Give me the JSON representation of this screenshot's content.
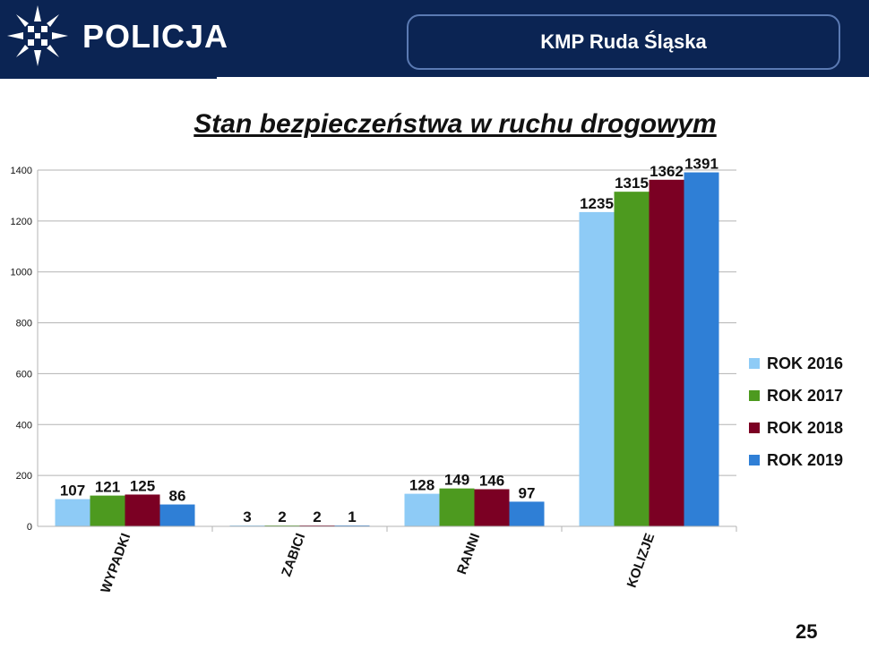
{
  "header": {
    "brand": "POLICJA",
    "unit": "KMP Ruda Śląska"
  },
  "colors": {
    "header_bg": "#0b2453",
    "grid": "#b3b3b3"
  },
  "icons": {
    "logo": "police-star-icon"
  },
  "page_number": "25",
  "chart_data": {
    "type": "bar",
    "title": "Stan bezpieczeństwa w ruchu drogowym",
    "categories": [
      "WYPADKI",
      "ZABICI",
      "RANNI",
      "KOLIZJE"
    ],
    "series": [
      {
        "name": "ROK 2016",
        "color": "#8ecbf6",
        "values": [
          107,
          3,
          128,
          1235
        ]
      },
      {
        "name": "ROK 2017",
        "color": "#4d9a1f",
        "values": [
          121,
          2,
          149,
          1315
        ]
      },
      {
        "name": "ROK 2018",
        "color": "#7b0023",
        "values": [
          125,
          2,
          146,
          1362
        ]
      },
      {
        "name": "ROK 2019",
        "color": "#2f7fd6",
        "values": [
          86,
          1,
          97,
          1391
        ]
      }
    ],
    "yticks": [
      0,
      200,
      400,
      600,
      800,
      1000,
      1200,
      1400
    ],
    "ylim": [
      0,
      1400
    ],
    "grid": true,
    "legend": "right"
  }
}
